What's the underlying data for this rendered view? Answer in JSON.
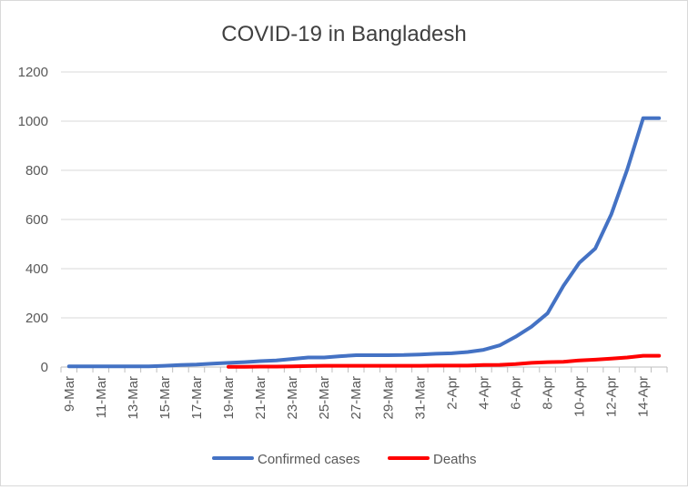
{
  "chart_data": {
    "type": "line",
    "title": "COVID-19 in Bangladesh",
    "xlabel": "",
    "ylabel": "",
    "ylim": [
      0,
      1200
    ],
    "yticks": [
      "0",
      "200",
      "400",
      "600",
      "800",
      "1000",
      "1200"
    ],
    "grid": "horizontal",
    "legend_position": "bottom",
    "x": [
      "9-Mar",
      "10-Mar",
      "11-Mar",
      "12-Mar",
      "13-Mar",
      "14-Mar",
      "15-Mar",
      "16-Mar",
      "17-Mar",
      "18-Mar",
      "19-Mar",
      "20-Mar",
      "21-Mar",
      "22-Mar",
      "23-Mar",
      "24-Mar",
      "25-Mar",
      "26-Mar",
      "27-Mar",
      "28-Mar",
      "29-Mar",
      "30-Mar",
      "31-Mar",
      "1-Apr",
      "2-Apr",
      "3-Apr",
      "4-Apr",
      "5-Apr",
      "6-Apr",
      "7-Apr",
      "8-Apr",
      "9-Apr",
      "10-Apr",
      "11-Apr",
      "12-Apr",
      "13-Apr",
      "14-Apr",
      "15-Apr"
    ],
    "xtick_labels": [
      "9-Mar",
      "11-Mar",
      "13-Mar",
      "15-Mar",
      "17-Mar",
      "19-Mar",
      "21-Mar",
      "23-Mar",
      "25-Mar",
      "27-Mar",
      "29-Mar",
      "31-Mar",
      "2-Apr",
      "4-Apr",
      "6-Apr",
      "8-Apr",
      "10-Apr",
      "12-Apr",
      "14-Apr"
    ],
    "series": [
      {
        "name": "Confirmed cases",
        "color": "#4472c4",
        "values": [
          3,
          3,
          3,
          3,
          3,
          3,
          5,
          8,
          10,
          14,
          17,
          20,
          24,
          27,
          33,
          39,
          39,
          44,
          48,
          48,
          48,
          49,
          51,
          54,
          56,
          61,
          70,
          88,
          123,
          164,
          218,
          330,
          424,
          482,
          621,
          803,
          1012,
          1012
        ]
      },
      {
        "name": "Deaths",
        "color": "#ff0000",
        "values": [
          null,
          null,
          null,
          null,
          null,
          null,
          null,
          null,
          null,
          null,
          1,
          1,
          2,
          2,
          3,
          4,
          5,
          5,
          5,
          5,
          5,
          5,
          5,
          6,
          6,
          6,
          8,
          9,
          12,
          17,
          20,
          21,
          27,
          30,
          34,
          39,
          46,
          46
        ]
      }
    ]
  }
}
